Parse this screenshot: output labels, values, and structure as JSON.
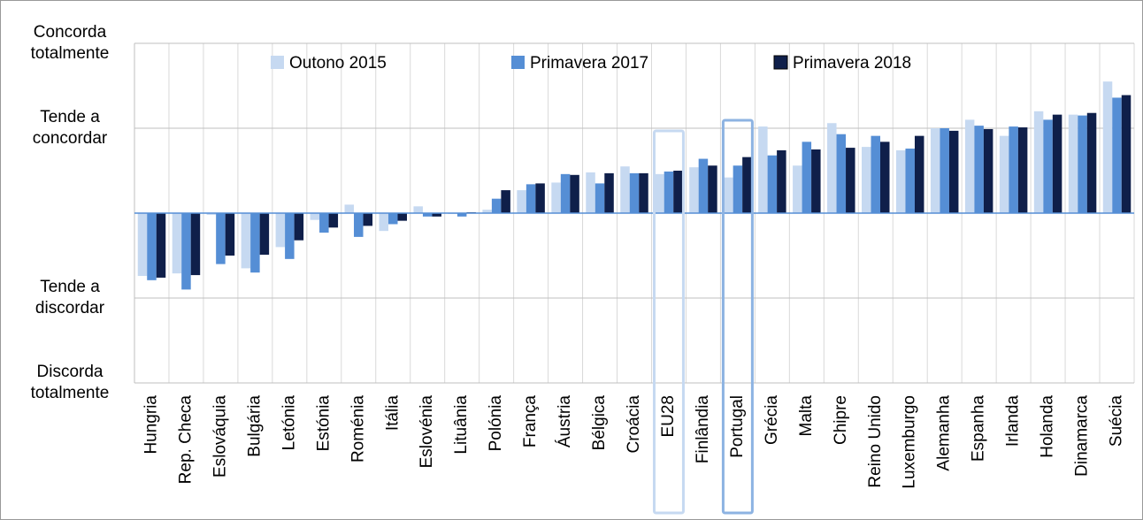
{
  "chart_data": {
    "type": "bar",
    "categories": [
      "Hungria",
      "Rep. Checa",
      "Eslováquia",
      "Bulgária",
      "Letónia",
      "Estónia",
      "Roménia",
      "Itália",
      "Eslovénia",
      "Lituânia",
      "Polónia",
      "França",
      "Áustria",
      "Bélgica",
      "Croácia",
      "EU28",
      "Finlândia",
      "Portugal",
      "Grécia",
      "Malta",
      "Chipre",
      "Reino Unido",
      "Luxemburgo",
      "Alemanha",
      "Espanha",
      "Irlanda",
      "Holanda",
      "Dinamarca",
      "Suécia"
    ],
    "series": [
      {
        "name": "Outono 2015",
        "color": "#c6d9f1",
        "values": [
          -0.74,
          -0.71,
          -0.02,
          -0.65,
          -0.4,
          -0.08,
          0.1,
          -0.21,
          0.08,
          -0.01,
          0.04,
          0.27,
          0.36,
          0.48,
          0.55,
          0.46,
          0.54,
          0.42,
          1.02,
          0.56,
          1.06,
          0.78,
          0.74,
          1.0,
          1.1,
          0.91,
          1.2,
          1.16,
          1.55
        ]
      },
      {
        "name": "Primavera 2017",
        "color": "#558ed5",
        "values": [
          -0.79,
          -0.9,
          -0.6,
          -0.7,
          -0.54,
          -0.23,
          -0.28,
          -0.13,
          -0.04,
          -0.04,
          0.17,
          0.34,
          0.46,
          0.35,
          0.47,
          0.49,
          0.64,
          0.56,
          0.68,
          0.84,
          0.93,
          0.91,
          0.76,
          1.0,
          1.03,
          1.02,
          1.1,
          1.15,
          1.36
        ]
      },
      {
        "name": "Primavera 2018",
        "color": "#0f1f4a",
        "values": [
          -0.76,
          -0.73,
          -0.5,
          -0.49,
          -0.32,
          -0.17,
          -0.15,
          -0.09,
          -0.04,
          0.01,
          0.27,
          0.35,
          0.45,
          0.47,
          0.47,
          0.5,
          0.56,
          0.66,
          0.74,
          0.75,
          0.77,
          0.84,
          0.91,
          0.97,
          0.99,
          1.01,
          1.16,
          1.18,
          1.39
        ]
      }
    ],
    "ylim": [
      -2,
      2
    ],
    "yticks": [
      {
        "value": -2,
        "label": "Discorda totalmente"
      },
      {
        "value": -1,
        "label": "Tende a discordar"
      },
      {
        "value": 1,
        "label": "Tende a concordar"
      },
      {
        "value": 2,
        "label": "Concorda totalmente"
      }
    ],
    "grid": true
  }
}
